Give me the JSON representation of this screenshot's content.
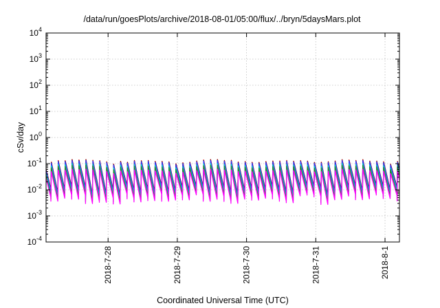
{
  "chart_data": {
    "type": "line",
    "title": "/data/run/goesPlots/archive/2018-08-01/05:00/flux/../bryn/5daysMars.plot",
    "xlabel": "Coordinated Universal Time (UTC)",
    "ylabel": "cSv/day",
    "yscale": "log",
    "ylim": [
      0.0001,
      10000
    ],
    "xlim": [
      "2018-07-27 02:30",
      "2018-08-01 05:00"
    ],
    "grid": true,
    "yticks": [
      {
        "base": "10",
        "exp": "-4"
      },
      {
        "base": "10",
        "exp": "-3"
      },
      {
        "base": "10",
        "exp": "-2"
      },
      {
        "base": "10",
        "exp": "-1"
      },
      {
        "base": "10",
        "exp": "0"
      },
      {
        "base": "10",
        "exp": "1"
      },
      {
        "base": "10",
        "exp": "2"
      },
      {
        "base": "10",
        "exp": "3"
      },
      {
        "base": "10",
        "exp": "4"
      }
    ],
    "xticks": [
      "2018-7-28",
      "2018-7-29",
      "2018-7-30",
      "2018-7-31",
      "2018-8-1"
    ],
    "pattern": {
      "pulses_per_day": 10,
      "peak_range": [
        0.05,
        0.14
      ],
      "trough_range": [
        0.003,
        0.02
      ]
    },
    "series": [
      {
        "color": "#d60000",
        "scale": 1.08
      },
      {
        "color": "#000000",
        "scale": 1.0
      },
      {
        "color": "#3a3aff",
        "scale": 0.95
      },
      {
        "color": "#00d2d2",
        "scale": 0.72
      },
      {
        "color": "#2a8a2a",
        "scale": 0.6
      },
      {
        "color": "#ff00ff",
        "scale": 0.42
      }
    ]
  }
}
